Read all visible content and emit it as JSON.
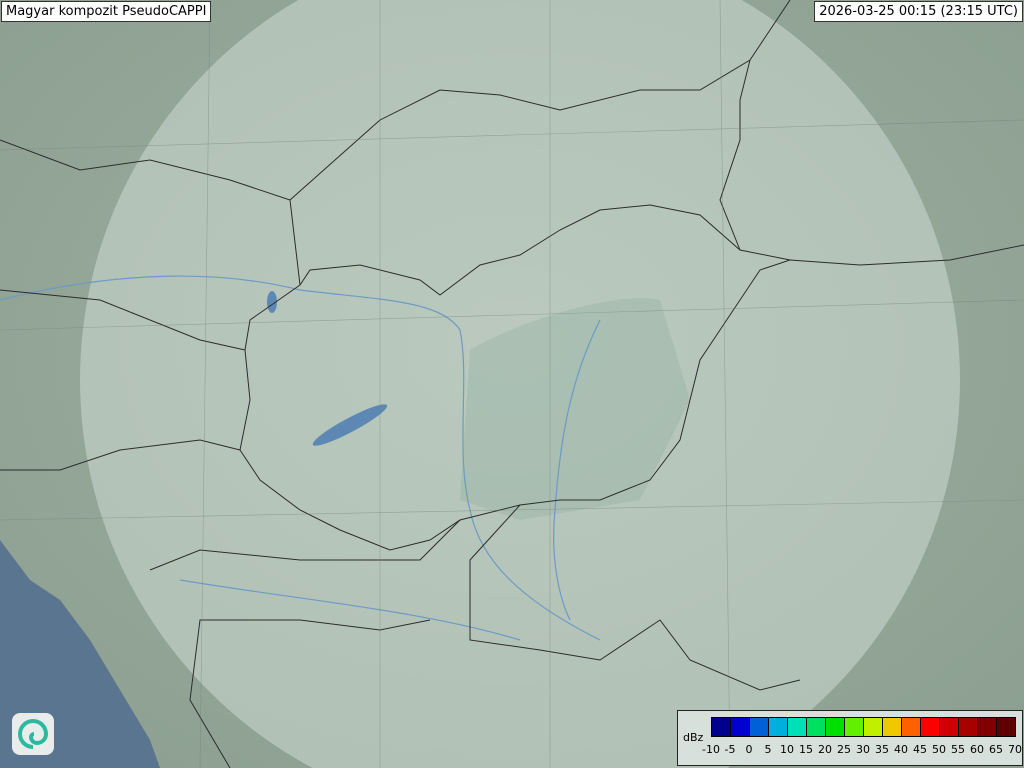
{
  "header": {
    "title": "Magyar kompozit  PseudoCAPPI",
    "timestamp": "2026-03-25 00:15 (23:15 UTC)"
  },
  "legend": {
    "unit": "dBz",
    "ticks": [
      "-10",
      "-5",
      "0",
      "5",
      "10",
      "15",
      "20",
      "25",
      "30",
      "35",
      "40",
      "45",
      "50",
      "55",
      "60",
      "65",
      "70"
    ],
    "colors": [
      "#00008c",
      "#0000d0",
      "#0060d8",
      "#00b0dc",
      "#00e0b8",
      "#00e060",
      "#00e000",
      "#60f000",
      "#c0f000",
      "#f0c800",
      "#ff6000",
      "#ff0000",
      "#d00000",
      "#a80000",
      "#800000",
      "#600000"
    ]
  },
  "logo": {
    "icon": "swirl-logo-icon",
    "accent": "#2fb8a0"
  },
  "map": {
    "land": "#a5b7a7",
    "coverage": "#c9d6cf",
    "sea": "#5a7590",
    "lake": "#5d88b3",
    "border": "#2c2c2c",
    "river": "#6c9bc4"
  }
}
